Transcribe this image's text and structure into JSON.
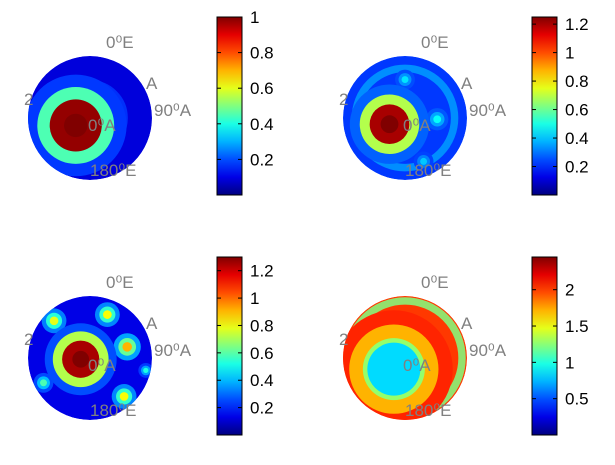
{
  "chart_data": [
    {
      "type": "heatmap",
      "projection": "sphere",
      "colormap": "jet",
      "colorbar": {
        "ticks": [
          0.2,
          0.4,
          0.6,
          0.8,
          1
        ],
        "tick_labels": [
          "0.2",
          "0.4",
          "0.6",
          "0.8",
          "1"
        ],
        "clim": [
          0.0,
          1.0
        ],
        "position": "right"
      },
      "sphere_labels": {
        "top": "0⁰E",
        "left": "2",
        "right_upper": "A",
        "right": "90⁰A",
        "center": "0⁰A",
        "bottom": "180⁰E"
      },
      "pattern": "single-lobe"
    },
    {
      "type": "heatmap",
      "projection": "sphere",
      "colormap": "jet",
      "colorbar": {
        "ticks": [
          0.2,
          0.4,
          0.6,
          0.8,
          1,
          1.2
        ],
        "tick_labels": [
          "0.2",
          "0.4",
          "0.6",
          "0.8",
          "1",
          "1.2"
        ],
        "clim": [
          0.0,
          1.25
        ],
        "position": "right"
      },
      "sphere_labels": {
        "top": "0⁰E",
        "left": "2",
        "right_upper": "A",
        "right": "90⁰A",
        "center": "0⁰A",
        "bottom": "180⁰E"
      },
      "pattern": "lobe-with-ring"
    },
    {
      "type": "heatmap",
      "projection": "sphere",
      "colormap": "jet",
      "colorbar": {
        "ticks": [
          0.2,
          0.4,
          0.6,
          0.8,
          1,
          1.2
        ],
        "tick_labels": [
          "0.2",
          "0.4",
          "0.6",
          "0.8",
          "1",
          "1.2"
        ],
        "clim": [
          0.0,
          1.3
        ],
        "position": "right"
      },
      "sphere_labels": {
        "top": "0⁰E",
        "left": "2",
        "right_upper": "A",
        "right": "90⁰A",
        "center": "0⁰A",
        "bottom": "180⁰E"
      },
      "pattern": "multi-lobe"
    },
    {
      "type": "heatmap",
      "projection": "sphere",
      "colormap": "jet",
      "colorbar": {
        "ticks": [
          0.5,
          1,
          1.5,
          2
        ],
        "tick_labels": [
          "0.5",
          "1",
          "1.5",
          "2"
        ],
        "clim": [
          0.0,
          2.45
        ],
        "position": "right"
      },
      "sphere_labels": {
        "top": "0⁰E",
        "left": "2",
        "right_upper": "A",
        "right": "90⁰A",
        "center": "0⁰A",
        "bottom": "180⁰E"
      },
      "pattern": "central-minimum-ring-maximum"
    }
  ]
}
